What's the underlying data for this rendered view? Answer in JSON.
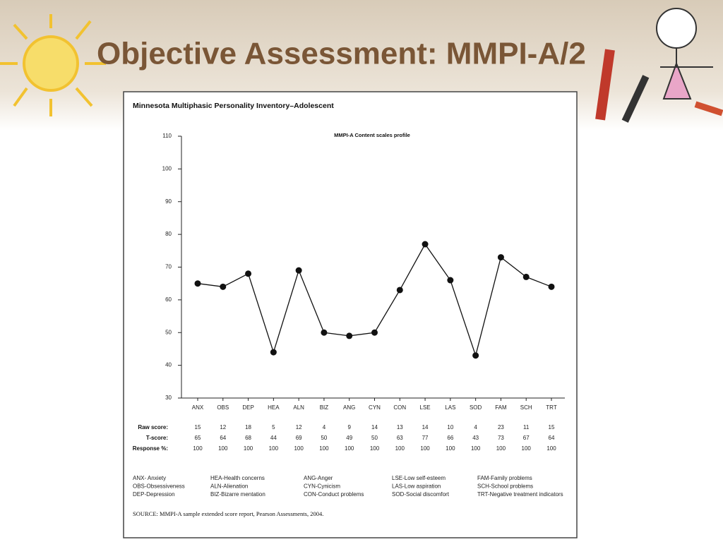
{
  "slide_title": "Objective Assessment:  MMPI-A/2",
  "chart_data": {
    "type": "line",
    "title": "Minnesota Multiphasic Personality Inventory–Adolescent",
    "subtitle": "MMPI-A Content scales profile",
    "categories": [
      "ANX",
      "OBS",
      "DEP",
      "HEA",
      "ALN",
      "BIZ",
      "ANG",
      "CYN",
      "CON",
      "LSE",
      "LAS",
      "SOD",
      "FAM",
      "SCH",
      "TRT"
    ],
    "series": [
      {
        "name": "T-score:",
        "color": "#111111",
        "values": [
          65,
          64,
          68,
          44,
          69,
          50,
          49,
          50,
          63,
          77,
          66,
          43,
          73,
          67,
          64
        ]
      }
    ],
    "raw_scores": {
      "label": "Raw score:",
      "values": [
        15,
        12,
        18,
        5,
        12,
        4,
        9,
        14,
        13,
        14,
        10,
        4,
        23,
        11,
        15
      ]
    },
    "response_pct": {
      "label": "Response %:",
      "values": [
        100,
        100,
        100,
        100,
        100,
        100,
        100,
        100,
        100,
        100,
        100,
        100,
        100,
        100,
        100
      ]
    },
    "ylim": [
      30,
      110
    ],
    "yticks": [
      30,
      40,
      50,
      60,
      70,
      80,
      90,
      100,
      110
    ],
    "grid": false,
    "abbreviations": [
      [
        "ANX- Anxiety",
        "OBS-Obsessiveness",
        "DEP-Depression"
      ],
      [
        "HEA-Health concerns",
        "ALN-Alienation",
        "BIZ-Bizarre mentation"
      ],
      [
        "ANG-Anger",
        "CYN-Cynicism",
        "CON-Conduct problems"
      ],
      [
        "LSE-Low self-esteem",
        "LAS-Low aspiration",
        "SOD-Social discomfort"
      ],
      [
        "FAM-Family problems",
        "SCH-School problems",
        "TRT-Negative treatment indicators"
      ]
    ],
    "source": "SOURCE: MMPI-A sample extended score report, Pearson Assessments, 2004."
  }
}
